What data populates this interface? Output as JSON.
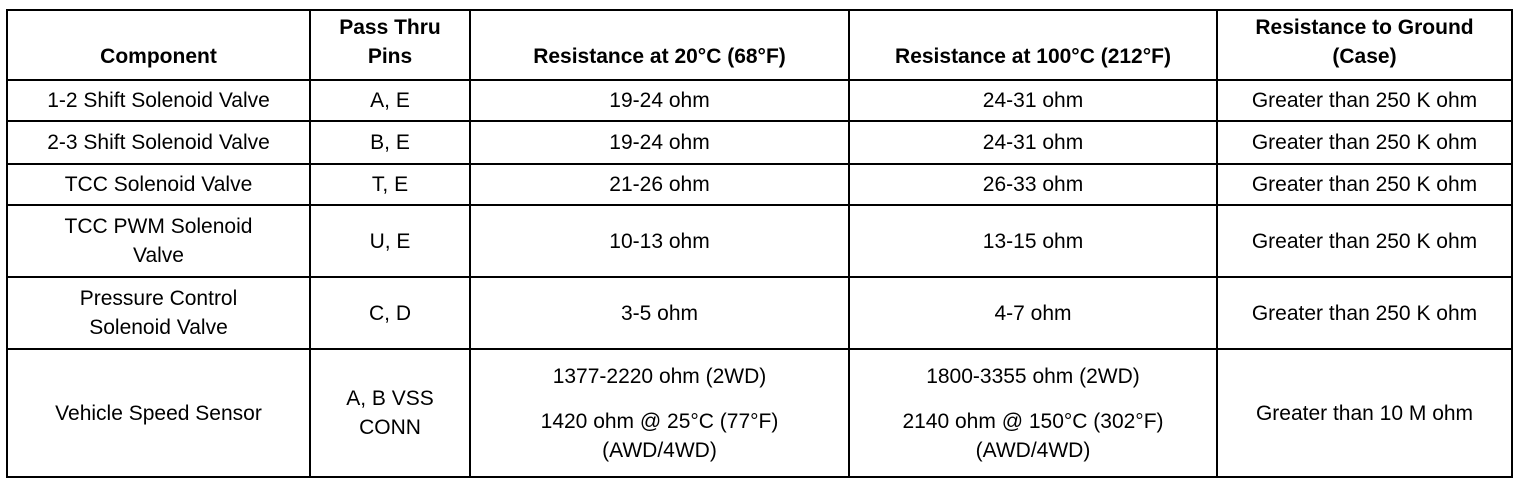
{
  "headers": {
    "component": "Component",
    "pins_line1": "Pass Thru",
    "pins_line2": "Pins",
    "res20": "Resistance at 20°C (68°F)",
    "res100": "Resistance at 100°C (212°F)",
    "ground_line1": "Resistance to Ground",
    "ground_line2": "(Case)"
  },
  "rows": [
    {
      "component": "1-2 Shift Solenoid Valve",
      "pins": "A, E",
      "res20": "19-24 ohm",
      "res100": "24-31 ohm",
      "ground": "Greater than 250 K ohm"
    },
    {
      "component": "2-3 Shift Solenoid Valve",
      "pins": "B, E",
      "res20": "19-24 ohm",
      "res100": "24-31 ohm",
      "ground": "Greater than 250 K ohm"
    },
    {
      "component": "TCC Solenoid Valve",
      "pins": "T, E",
      "res20": "21-26 ohm",
      "res100": "26-33 ohm",
      "ground": "Greater than 250 K ohm"
    },
    {
      "component_line1": "TCC PWM Solenoid",
      "component_line2": "Valve",
      "pins": "U, E",
      "res20": "10-13 ohm",
      "res100": "13-15 ohm",
      "ground": "Greater than 250 K ohm"
    },
    {
      "component_line1": "Pressure Control",
      "component_line2": "Solenoid Valve",
      "pins": "C, D",
      "res20": "3-5 ohm",
      "res100": "4-7 ohm",
      "ground": "Greater than 250 K ohm"
    },
    {
      "component": "Vehicle Speed Sensor",
      "pins_line1": "A, B VSS",
      "pins_line2": "CONN",
      "res20_a": "1377-2220 ohm (2WD)",
      "res20_b": "1420 ohm @ 25°C (77°F)",
      "res20_c": "(AWD/4WD)",
      "res100_a": "1800-3355 ohm (2WD)",
      "res100_b": "2140 ohm @ 150°C (302°F)",
      "res100_c": "(AWD/4WD)",
      "ground": "Greater than 10 M ohm"
    }
  ]
}
